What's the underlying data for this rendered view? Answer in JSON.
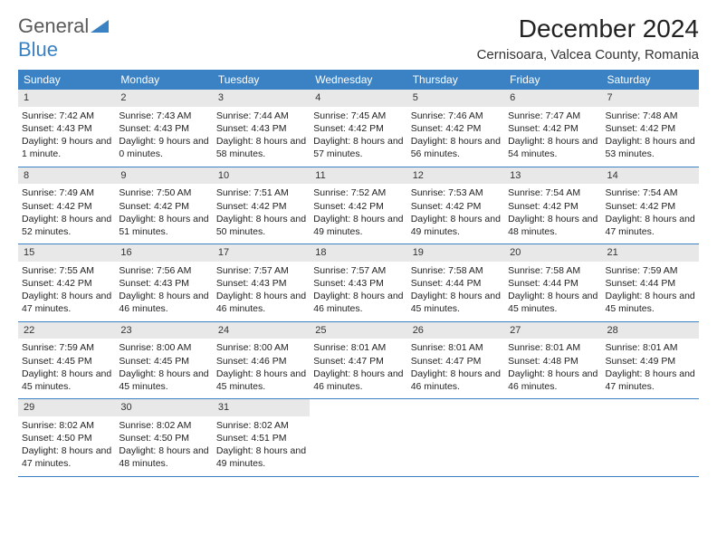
{
  "logo": {
    "part1": "General",
    "part2": "Blue"
  },
  "title": "December 2024",
  "location": "Cernisoara, Valcea County, Romania",
  "colors": {
    "header_bg": "#3b82c4",
    "header_fg": "#ffffff",
    "daynum_bg": "#e8e8e8",
    "rule": "#3b82c4"
  },
  "day_names": [
    "Sunday",
    "Monday",
    "Tuesday",
    "Wednesday",
    "Thursday",
    "Friday",
    "Saturday"
  ],
  "weeks": [
    [
      {
        "n": "1",
        "sr": "Sunrise: 7:42 AM",
        "ss": "Sunset: 4:43 PM",
        "dl": "Daylight: 9 hours and 1 minute."
      },
      {
        "n": "2",
        "sr": "Sunrise: 7:43 AM",
        "ss": "Sunset: 4:43 PM",
        "dl": "Daylight: 9 hours and 0 minutes."
      },
      {
        "n": "3",
        "sr": "Sunrise: 7:44 AM",
        "ss": "Sunset: 4:43 PM",
        "dl": "Daylight: 8 hours and 58 minutes."
      },
      {
        "n": "4",
        "sr": "Sunrise: 7:45 AM",
        "ss": "Sunset: 4:42 PM",
        "dl": "Daylight: 8 hours and 57 minutes."
      },
      {
        "n": "5",
        "sr": "Sunrise: 7:46 AM",
        "ss": "Sunset: 4:42 PM",
        "dl": "Daylight: 8 hours and 56 minutes."
      },
      {
        "n": "6",
        "sr": "Sunrise: 7:47 AM",
        "ss": "Sunset: 4:42 PM",
        "dl": "Daylight: 8 hours and 54 minutes."
      },
      {
        "n": "7",
        "sr": "Sunrise: 7:48 AM",
        "ss": "Sunset: 4:42 PM",
        "dl": "Daylight: 8 hours and 53 minutes."
      }
    ],
    [
      {
        "n": "8",
        "sr": "Sunrise: 7:49 AM",
        "ss": "Sunset: 4:42 PM",
        "dl": "Daylight: 8 hours and 52 minutes."
      },
      {
        "n": "9",
        "sr": "Sunrise: 7:50 AM",
        "ss": "Sunset: 4:42 PM",
        "dl": "Daylight: 8 hours and 51 minutes."
      },
      {
        "n": "10",
        "sr": "Sunrise: 7:51 AM",
        "ss": "Sunset: 4:42 PM",
        "dl": "Daylight: 8 hours and 50 minutes."
      },
      {
        "n": "11",
        "sr": "Sunrise: 7:52 AM",
        "ss": "Sunset: 4:42 PM",
        "dl": "Daylight: 8 hours and 49 minutes."
      },
      {
        "n": "12",
        "sr": "Sunrise: 7:53 AM",
        "ss": "Sunset: 4:42 PM",
        "dl": "Daylight: 8 hours and 49 minutes."
      },
      {
        "n": "13",
        "sr": "Sunrise: 7:54 AM",
        "ss": "Sunset: 4:42 PM",
        "dl": "Daylight: 8 hours and 48 minutes."
      },
      {
        "n": "14",
        "sr": "Sunrise: 7:54 AM",
        "ss": "Sunset: 4:42 PM",
        "dl": "Daylight: 8 hours and 47 minutes."
      }
    ],
    [
      {
        "n": "15",
        "sr": "Sunrise: 7:55 AM",
        "ss": "Sunset: 4:42 PM",
        "dl": "Daylight: 8 hours and 47 minutes."
      },
      {
        "n": "16",
        "sr": "Sunrise: 7:56 AM",
        "ss": "Sunset: 4:43 PM",
        "dl": "Daylight: 8 hours and 46 minutes."
      },
      {
        "n": "17",
        "sr": "Sunrise: 7:57 AM",
        "ss": "Sunset: 4:43 PM",
        "dl": "Daylight: 8 hours and 46 minutes."
      },
      {
        "n": "18",
        "sr": "Sunrise: 7:57 AM",
        "ss": "Sunset: 4:43 PM",
        "dl": "Daylight: 8 hours and 46 minutes."
      },
      {
        "n": "19",
        "sr": "Sunrise: 7:58 AM",
        "ss": "Sunset: 4:44 PM",
        "dl": "Daylight: 8 hours and 45 minutes."
      },
      {
        "n": "20",
        "sr": "Sunrise: 7:58 AM",
        "ss": "Sunset: 4:44 PM",
        "dl": "Daylight: 8 hours and 45 minutes."
      },
      {
        "n": "21",
        "sr": "Sunrise: 7:59 AM",
        "ss": "Sunset: 4:44 PM",
        "dl": "Daylight: 8 hours and 45 minutes."
      }
    ],
    [
      {
        "n": "22",
        "sr": "Sunrise: 7:59 AM",
        "ss": "Sunset: 4:45 PM",
        "dl": "Daylight: 8 hours and 45 minutes."
      },
      {
        "n": "23",
        "sr": "Sunrise: 8:00 AM",
        "ss": "Sunset: 4:45 PM",
        "dl": "Daylight: 8 hours and 45 minutes."
      },
      {
        "n": "24",
        "sr": "Sunrise: 8:00 AM",
        "ss": "Sunset: 4:46 PM",
        "dl": "Daylight: 8 hours and 45 minutes."
      },
      {
        "n": "25",
        "sr": "Sunrise: 8:01 AM",
        "ss": "Sunset: 4:47 PM",
        "dl": "Daylight: 8 hours and 46 minutes."
      },
      {
        "n": "26",
        "sr": "Sunrise: 8:01 AM",
        "ss": "Sunset: 4:47 PM",
        "dl": "Daylight: 8 hours and 46 minutes."
      },
      {
        "n": "27",
        "sr": "Sunrise: 8:01 AM",
        "ss": "Sunset: 4:48 PM",
        "dl": "Daylight: 8 hours and 46 minutes."
      },
      {
        "n": "28",
        "sr": "Sunrise: 8:01 AM",
        "ss": "Sunset: 4:49 PM",
        "dl": "Daylight: 8 hours and 47 minutes."
      }
    ],
    [
      {
        "n": "29",
        "sr": "Sunrise: 8:02 AM",
        "ss": "Sunset: 4:50 PM",
        "dl": "Daylight: 8 hours and 47 minutes."
      },
      {
        "n": "30",
        "sr": "Sunrise: 8:02 AM",
        "ss": "Sunset: 4:50 PM",
        "dl": "Daylight: 8 hours and 48 minutes."
      },
      {
        "n": "31",
        "sr": "Sunrise: 8:02 AM",
        "ss": "Sunset: 4:51 PM",
        "dl": "Daylight: 8 hours and 49 minutes."
      },
      {
        "empty": true
      },
      {
        "empty": true
      },
      {
        "empty": true
      },
      {
        "empty": true
      }
    ]
  ]
}
